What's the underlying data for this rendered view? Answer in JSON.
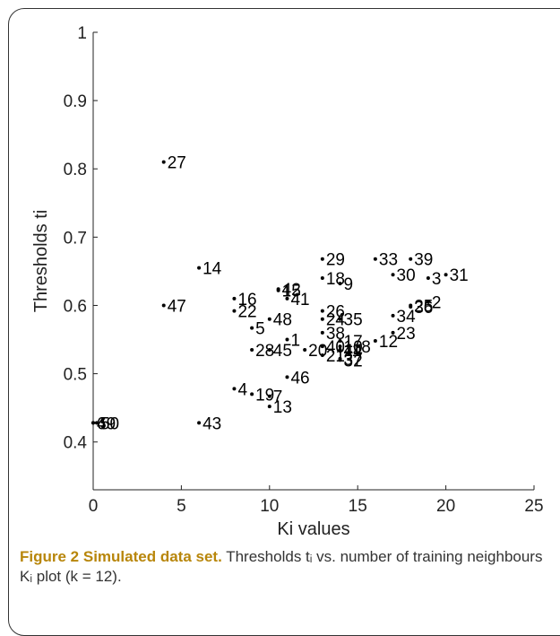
{
  "caption": {
    "figure_label": "Figure 2",
    "title": "Simulated data set.",
    "text": "Thresholds tᵢ vs. number of training neighbours Kᵢ plot (k = 12)."
  },
  "chart_data": {
    "type": "scatter",
    "xlabel": "Ki values",
    "ylabel": "Thresholds ti",
    "xlim": [
      0,
      25
    ],
    "ylim": [
      0.33,
      1.0
    ],
    "xticks": [
      0,
      5,
      10,
      15,
      20,
      25
    ],
    "yticks": [
      0.4,
      0.5,
      0.6,
      0.7,
      0.8,
      0.9,
      1
    ],
    "grid": false,
    "points": [
      {
        "label": "1",
        "x": 11,
        "y": 0.55
      },
      {
        "label": "2",
        "x": 19,
        "y": 0.605
      },
      {
        "label": "3",
        "x": 19,
        "y": 0.64
      },
      {
        "label": "4",
        "x": 8,
        "y": 0.478
      },
      {
        "label": "5",
        "x": 9,
        "y": 0.567
      },
      {
        "label": "6",
        "x": 0,
        "y": 0.428
      },
      {
        "label": "7",
        "x": 10,
        "y": 0.467
      },
      {
        "label": "8",
        "x": 15,
        "y": 0.54
      },
      {
        "label": "9",
        "x": 14,
        "y": 0.632
      },
      {
        "label": "10",
        "x": 14,
        "y": 0.54
      },
      {
        "label": "11",
        "x": 14,
        "y": 0.535
      },
      {
        "label": "12",
        "x": 16,
        "y": 0.548
      },
      {
        "label": "13",
        "x": 10,
        "y": 0.452
      },
      {
        "label": "14",
        "x": 6,
        "y": 0.655
      },
      {
        "label": "15",
        "x": 10.5,
        "y": 0.622
      },
      {
        "label": "16",
        "x": 8,
        "y": 0.61
      },
      {
        "label": "17",
        "x": 14,
        "y": 0.548
      },
      {
        "label": "18",
        "x": 13,
        "y": 0.64
      },
      {
        "label": "19",
        "x": 9,
        "y": 0.47
      },
      {
        "label": "20",
        "x": 12,
        "y": 0.535
      },
      {
        "label": "21",
        "x": 13,
        "y": 0.527
      },
      {
        "label": "22",
        "x": 8,
        "y": 0.592
      },
      {
        "label": "23",
        "x": 17,
        "y": 0.56
      },
      {
        "label": "24",
        "x": 13,
        "y": 0.58
      },
      {
        "label": "25",
        "x": 18,
        "y": 0.6
      },
      {
        "label": "26",
        "x": 13,
        "y": 0.592
      },
      {
        "label": "27",
        "x": 4,
        "y": 0.81
      },
      {
        "label": "28",
        "x": 9,
        "y": 0.535
      },
      {
        "label": "29",
        "x": 13,
        "y": 0.668
      },
      {
        "label": "30",
        "x": 17,
        "y": 0.645
      },
      {
        "label": "31",
        "x": 20,
        "y": 0.645
      },
      {
        "label": "32",
        "x": 14,
        "y": 0.52
      },
      {
        "label": "33",
        "x": 16,
        "y": 0.668
      },
      {
        "label": "34",
        "x": 17,
        "y": 0.585
      },
      {
        "label": "35",
        "x": 14,
        "y": 0.58
      },
      {
        "label": "36",
        "x": 18,
        "y": 0.598
      },
      {
        "label": "37",
        "x": 14,
        "y": 0.522
      },
      {
        "label": "38",
        "x": 13,
        "y": 0.56
      },
      {
        "label": "39",
        "x": 18,
        "y": 0.668
      },
      {
        "label": "40",
        "x": 13,
        "y": 0.54
      },
      {
        "label": "41",
        "x": 11,
        "y": 0.61
      },
      {
        "label": "42",
        "x": 10.5,
        "y": 0.624
      },
      {
        "label": "43",
        "x": 6,
        "y": 0.428
      },
      {
        "label": "44",
        "x": 14,
        "y": 0.535
      },
      {
        "label": "45",
        "x": 10,
        "y": 0.535
      },
      {
        "label": "46",
        "x": 11,
        "y": 0.495
      },
      {
        "label": "47",
        "x": 4,
        "y": 0.6
      },
      {
        "label": "48",
        "x": 10,
        "y": 0.58
      },
      {
        "label": "49",
        "x": 0,
        "y": 0.428
      },
      {
        "label": "50",
        "x": 0.2,
        "y": 0.428
      }
    ]
  }
}
